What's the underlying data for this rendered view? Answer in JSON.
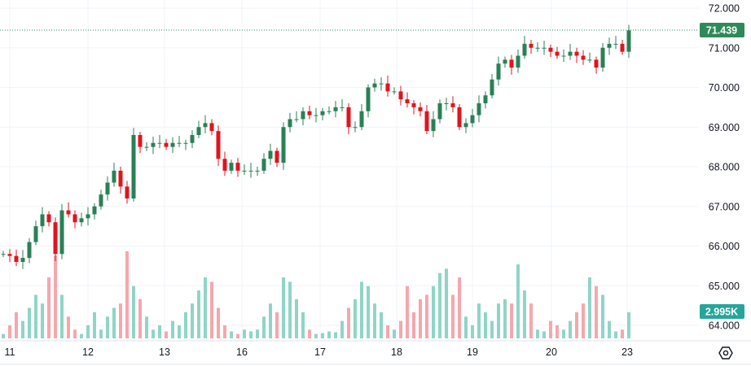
{
  "chart_data": {
    "type": "candlestick",
    "title": "",
    "y_axis": {
      "ticks": [
        "72.000",
        "71.000",
        "70.000",
        "69.000",
        "68.000",
        "67.000",
        "66.000",
        "65.000",
        "64.000"
      ],
      "range": [
        63.8,
        72.2
      ]
    },
    "x_axis": {
      "ticks": [
        "11",
        "12",
        "13",
        "16",
        "17",
        "18",
        "19",
        "20",
        "23"
      ]
    },
    "last_price": "71.439",
    "last_volume": "2.995K",
    "colors": {
      "up": "#2a8056",
      "down": "#e0141e",
      "vol_up": "#8fd5c7",
      "vol_down": "#f6a6ad",
      "price_tag": "#2e8a5a",
      "volume_tag": "#26a69a"
    },
    "first_open": 65.8,
    "close": [
      65.8,
      65.75,
      65.6,
      65.7,
      66.1,
      66.5,
      66.8,
      66.6,
      65.8,
      66.9,
      66.8,
      66.6,
      66.7,
      66.8,
      67.0,
      67.3,
      67.6,
      67.9,
      67.5,
      67.2,
      68.8,
      68.5,
      68.5,
      68.6,
      68.6,
      68.5,
      68.6,
      68.6,
      68.6,
      68.8,
      69.0,
      69.1,
      68.9,
      68.2,
      67.9,
      68.1,
      67.9,
      67.9,
      67.9,
      67.9,
      68.2,
      68.4,
      68.1,
      69.0,
      69.2,
      69.2,
      69.4,
      69.3,
      69.3,
      69.4,
      69.4,
      69.5,
      69.5,
      69.0,
      69.0,
      69.4,
      70.0,
      70.1,
      70.1,
      69.9,
      69.9,
      69.7,
      69.6,
      69.5,
      69.4,
      68.9,
      69.2,
      69.6,
      69.6,
      69.5,
      69.0,
      69.1,
      69.3,
      69.6,
      69.8,
      70.2,
      70.6,
      70.7,
      70.5,
      70.8,
      71.1,
      71.0,
      71.0,
      71.0,
      70.9,
      70.8,
      70.8,
      70.9,
      70.8,
      70.7,
      70.7,
      70.5,
      71.0,
      71.1,
      71.1,
      70.9,
      71.439
    ],
    "volume_k": [
      0.5,
      1.5,
      3,
      2,
      3.5,
      5,
      4,
      7,
      9.5,
      5,
      2.5,
      1,
      0.5,
      1.5,
      3,
      1,
      2.5,
      3.5,
      4,
      10,
      6,
      4.5,
      2.5,
      1,
      1.5,
      0.8,
      2,
      1.5,
      3,
      4,
      5.5,
      7,
      6.5,
      3.5,
      1.5,
      0.8,
      0.5,
      1,
      0.8,
      1,
      2.5,
      4,
      3,
      7,
      6.5,
      4.5,
      3,
      1,
      0.5,
      0.6,
      0.8,
      0.7,
      2,
      3.5,
      4.5,
      6.5,
      6,
      4,
      3,
      1.5,
      1,
      2,
      6,
      3,
      4.5,
      5,
      6,
      7.5,
      8,
      5,
      7,
      2.5,
      1.5,
      4,
      3,
      2,
      4,
      4.5,
      4,
      8.5,
      5.5,
      4,
      1,
      0.8,
      2,
      1.5,
      1,
      2,
      3,
      4,
      7,
      6,
      5,
      2,
      0.8,
      1,
      2.995
    ]
  }
}
